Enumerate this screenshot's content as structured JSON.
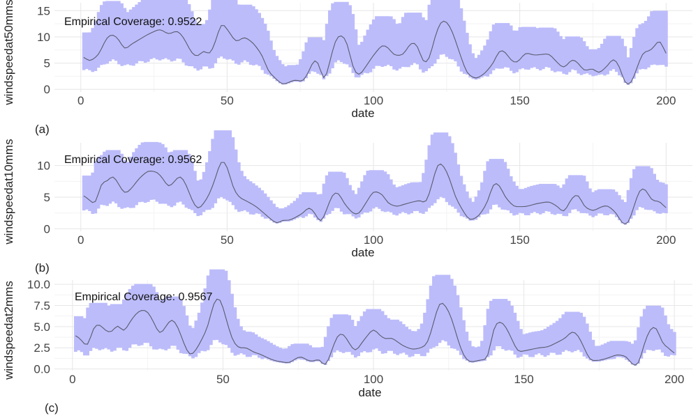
{
  "colors": {
    "band": "#bcbcfb",
    "line": "#5a5a6e",
    "grid_major": "#e6e6e6",
    "grid_minor": "#f3f3f3",
    "text": "#222222",
    "axis_text": "#444444"
  },
  "chart_data": [
    {
      "type": "area",
      "panel_label": "(a)",
      "xlabel": "date",
      "ylabel": "windspeedat50mms",
      "annotation": "Empirical Coverage: 0.9522",
      "xlim": [
        -9,
        209
      ],
      "ylim": [
        -0.5,
        16.5
      ],
      "xticks": [
        0,
        50,
        100,
        150,
        200
      ],
      "yticks": [
        0,
        5,
        10,
        15
      ],
      "ytick_labels": [
        "0",
        "5",
        "10",
        "15"
      ],
      "grid": true,
      "anchors": [
        [
          1,
          6.2
        ],
        [
          3,
          5.3
        ],
        [
          6,
          6.5
        ],
        [
          9,
          10
        ],
        [
          11,
          10.5
        ],
        [
          13,
          9.5
        ],
        [
          15,
          7.5
        ],
        [
          17,
          8.5
        ],
        [
          20,
          9.5
        ],
        [
          23,
          10.5
        ],
        [
          27,
          11.5
        ],
        [
          30,
          10.5
        ],
        [
          33,
          11.2
        ],
        [
          35,
          10
        ],
        [
          38,
          6.8
        ],
        [
          40,
          6.2
        ],
        [
          42,
          7.5
        ],
        [
          44,
          6.5
        ],
        [
          46,
          9
        ],
        [
          48,
          12.8
        ],
        [
          50,
          11.5
        ],
        [
          53,
          9
        ],
        [
          56,
          10
        ],
        [
          59,
          8.8
        ],
        [
          62,
          6.5
        ],
        [
          64,
          3.5
        ],
        [
          67,
          1.8
        ],
        [
          69,
          0.9
        ],
        [
          71,
          1.3
        ],
        [
          73,
          1.8
        ],
        [
          76,
          1.5
        ],
        [
          78,
          3.5
        ],
        [
          80,
          6
        ],
        [
          82,
          4
        ],
        [
          83,
          1
        ],
        [
          85,
          5
        ],
        [
          87,
          9.5
        ],
        [
          89,
          10.5
        ],
        [
          91,
          9
        ],
        [
          93,
          4
        ],
        [
          95,
          2.5
        ],
        [
          97,
          4
        ],
        [
          100,
          6.5
        ],
        [
          103,
          8.5
        ],
        [
          105,
          8
        ],
        [
          107,
          6.5
        ],
        [
          110,
          6.5
        ],
        [
          113,
          9
        ],
        [
          115,
          8.5
        ],
        [
          117,
          5
        ],
        [
          119,
          5.5
        ],
        [
          121,
          10
        ],
        [
          123,
          13
        ],
        [
          125,
          13
        ],
        [
          127,
          11
        ],
        [
          130,
          6
        ],
        [
          132,
          3
        ],
        [
          135,
          2
        ],
        [
          138,
          3
        ],
        [
          141,
          5
        ],
        [
          143,
          7.5
        ],
        [
          145,
          7.2
        ],
        [
          147,
          5.5
        ],
        [
          149,
          5
        ],
        [
          152,
          7
        ],
        [
          155,
          6.5
        ],
        [
          160,
          6.8
        ],
        [
          163,
          5
        ],
        [
          165,
          4
        ],
        [
          168,
          5.8
        ],
        [
          170,
          5
        ],
        [
          172,
          3.5
        ],
        [
          175,
          4
        ],
        [
          177,
          3
        ],
        [
          180,
          4.5
        ],
        [
          182,
          6
        ],
        [
          184,
          4.5
        ],
        [
          186,
          1
        ],
        [
          188,
          1
        ],
        [
          190,
          4
        ],
        [
          192,
          7
        ],
        [
          195,
          7.5
        ],
        [
          197,
          9
        ],
        [
          198,
          9.5
        ],
        [
          200,
          6.5
        ]
      ],
      "upper_factor": 1.42,
      "upper_add": 2.2,
      "lower_factor": 0.4,
      "lower_add": 1.6
    },
    {
      "type": "area",
      "panel_label": "(b)",
      "xlabel": "date",
      "ylabel": "windspeedat10mms",
      "annotation": "Empirical Coverage: 0.9562",
      "xlim": [
        -9,
        209
      ],
      "ylim": [
        -0.4,
        13.6
      ],
      "xticks": [
        0,
        50,
        100,
        150,
        200
      ],
      "yticks": [
        0,
        5,
        10
      ],
      "ytick_labels": [
        "0",
        "5",
        "10"
      ],
      "grid": true,
      "anchors": [
        [
          1,
          5.3
        ],
        [
          3,
          4.5
        ],
        [
          5,
          3.8
        ],
        [
          7,
          7.3
        ],
        [
          9,
          7.5
        ],
        [
          11,
          8.5
        ],
        [
          13,
          7
        ],
        [
          15,
          5.5
        ],
        [
          17,
          6.2
        ],
        [
          20,
          8
        ],
        [
          23,
          9.2
        ],
        [
          26,
          9
        ],
        [
          28,
          8
        ],
        [
          30,
          6.5
        ],
        [
          32,
          7.5
        ],
        [
          34,
          8.5
        ],
        [
          36,
          7
        ],
        [
          38,
          4.5
        ],
        [
          40,
          3
        ],
        [
          42,
          4
        ],
        [
          44,
          5.5
        ],
        [
          46,
          8
        ],
        [
          48,
          11
        ],
        [
          50,
          10
        ],
        [
          52,
          6.5
        ],
        [
          54,
          5
        ],
        [
          57,
          4.3
        ],
        [
          60,
          3.5
        ],
        [
          63,
          2.3
        ],
        [
          65,
          1.5
        ],
        [
          67,
          0.8
        ],
        [
          69,
          1.4
        ],
        [
          71,
          1.3
        ],
        [
          73,
          1.7
        ],
        [
          76,
          2.5
        ],
        [
          78,
          3.5
        ],
        [
          80,
          2.5
        ],
        [
          82,
          0.8
        ],
        [
          84,
          3
        ],
        [
          86,
          5.5
        ],
        [
          88,
          5.8
        ],
        [
          90,
          4
        ],
        [
          93,
          2.4
        ],
        [
          95,
          2.3
        ],
        [
          98,
          4.5
        ],
        [
          100,
          6
        ],
        [
          103,
          5.5
        ],
        [
          105,
          4
        ],
        [
          108,
          3.5
        ],
        [
          110,
          3.8
        ],
        [
          113,
          4.2
        ],
        [
          116,
          4.5
        ],
        [
          118,
          4
        ],
        [
          120,
          7
        ],
        [
          122,
          10.5
        ],
        [
          124,
          10
        ],
        [
          126,
          8
        ],
        [
          128,
          5
        ],
        [
          131,
          2.5
        ],
        [
          133,
          1.3
        ],
        [
          136,
          2
        ],
        [
          139,
          4.2
        ],
        [
          141,
          7.3
        ],
        [
          143,
          7
        ],
        [
          145,
          5
        ],
        [
          148,
          3.5
        ],
        [
          152,
          3.5
        ],
        [
          156,
          4
        ],
        [
          160,
          4.3
        ],
        [
          163,
          3.5
        ],
        [
          165,
          2.5
        ],
        [
          168,
          5
        ],
        [
          170,
          5.5
        ],
        [
          172,
          3.5
        ],
        [
          175,
          2.8
        ],
        [
          178,
          3.5
        ],
        [
          180,
          3.7
        ],
        [
          183,
          2.5
        ],
        [
          185,
          0.8
        ],
        [
          187,
          0.7
        ],
        [
          189,
          3.5
        ],
        [
          191,
          6.3
        ],
        [
          193,
          6.3
        ],
        [
          195,
          4.5
        ],
        [
          198,
          4.3
        ],
        [
          200,
          3.2
        ]
      ],
      "upper_factor": 1.35,
      "upper_add": 1.4,
      "lower_factor": 0.38,
      "lower_add": 1.2
    },
    {
      "type": "area",
      "panel_label": "(c)",
      "xlabel": "date",
      "ylabel": "windspeedat2mms",
      "annotation": "Empirical Coverage: 0.9567",
      "xlim": [
        -6,
        206
      ],
      "ylim": [
        -0.2,
        10.5
      ],
      "xticks": [
        0,
        50,
        100,
        150,
        200
      ],
      "yticks": [
        0,
        2.5,
        5,
        7.5,
        10
      ],
      "ytick_labels": [
        "0.0",
        "2.5",
        "5.0",
        "7.5",
        "10.0"
      ],
      "grid": true,
      "anchors": [
        [
          1,
          4
        ],
        [
          3,
          3.4
        ],
        [
          5,
          2.5
        ],
        [
          7,
          5
        ],
        [
          9,
          5.3
        ],
        [
          11,
          4.5
        ],
        [
          13,
          4.3
        ],
        [
          15,
          5.3
        ],
        [
          17,
          4.3
        ],
        [
          19,
          5.5
        ],
        [
          21,
          6.5
        ],
        [
          23,
          7
        ],
        [
          25,
          6.8
        ],
        [
          27,
          5.5
        ],
        [
          29,
          4
        ],
        [
          31,
          5
        ],
        [
          33,
          6
        ],
        [
          35,
          5
        ],
        [
          37,
          3
        ],
        [
          39,
          1.5
        ],
        [
          41,
          2.2
        ],
        [
          43,
          3.5
        ],
        [
          45,
          5
        ],
        [
          47,
          8
        ],
        [
          49,
          8.5
        ],
        [
          51,
          6
        ],
        [
          53,
          3.5
        ],
        [
          55,
          2.5
        ],
        [
          58,
          2.5
        ],
        [
          60,
          2
        ],
        [
          62,
          1.8
        ],
        [
          65,
          1.3
        ],
        [
          67,
          1
        ],
        [
          70,
          0.8
        ],
        [
          72,
          0.7
        ],
        [
          74,
          1.2
        ],
        [
          76,
          1.5
        ],
        [
          78,
          1
        ],
        [
          80,
          0.9
        ],
        [
          82,
          1.2
        ],
        [
          84,
          0.2
        ],
        [
          86,
          2
        ],
        [
          88,
          4
        ],
        [
          90,
          4.2
        ],
        [
          92,
          3
        ],
        [
          94,
          2
        ],
        [
          97,
          3.5
        ],
        [
          100,
          4.8
        ],
        [
          102,
          4
        ],
        [
          104,
          3.5
        ],
        [
          106,
          3.7
        ],
        [
          108,
          3.2
        ],
        [
          110,
          2.7
        ],
        [
          113,
          2.3
        ],
        [
          116,
          2.5
        ],
        [
          118,
          3
        ],
        [
          120,
          5.5
        ],
        [
          122,
          8
        ],
        [
          124,
          7.5
        ],
        [
          126,
          6
        ],
        [
          128,
          3.5
        ],
        [
          130,
          1.5
        ],
        [
          132,
          0.8
        ],
        [
          135,
          1
        ],
        [
          138,
          1.2
        ],
        [
          140,
          5
        ],
        [
          142,
          5.7
        ],
        [
          144,
          5
        ],
        [
          146,
          3.5
        ],
        [
          148,
          2
        ],
        [
          151,
          2.2
        ],
        [
          155,
          2.5
        ],
        [
          158,
          2.6
        ],
        [
          162,
          3.3
        ],
        [
          164,
          3.7
        ],
        [
          166,
          4.5
        ],
        [
          168,
          4
        ],
        [
          170,
          2.5
        ],
        [
          172,
          1
        ],
        [
          175,
          1
        ],
        [
          178,
          1.3
        ],
        [
          181,
          1.7
        ],
        [
          184,
          1.5
        ],
        [
          186,
          0.5
        ],
        [
          188,
          0.4
        ],
        [
          190,
          3
        ],
        [
          192,
          4.8
        ],
        [
          194,
          5
        ],
        [
          196,
          3
        ],
        [
          198,
          2.5
        ],
        [
          200,
          1.8
        ]
      ],
      "upper_factor": 1.28,
      "upper_add": 1.2,
      "lower_factor": 0.3,
      "lower_add": 1.1
    }
  ]
}
